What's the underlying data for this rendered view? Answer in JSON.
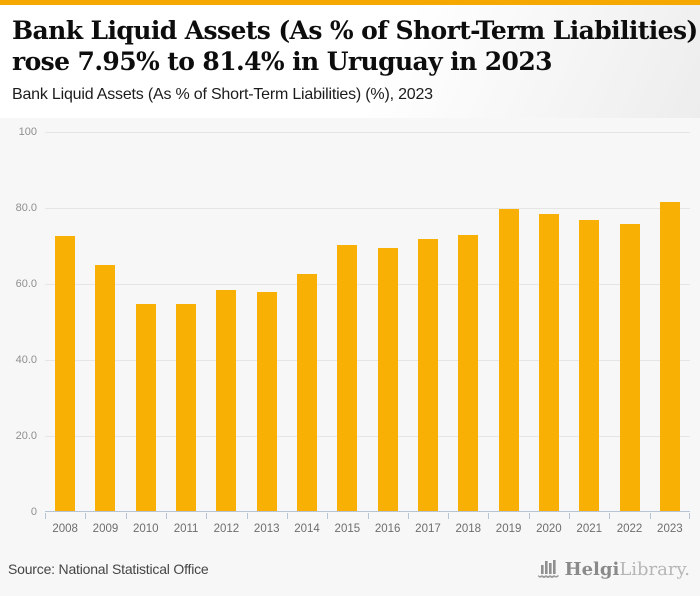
{
  "colors": {
    "accent_bar": "#f5a900",
    "bar_fill": "#f9b004",
    "gridline": "#e5e5e5",
    "axis_line": "#b7c4d6",
    "background": "#f7f7f7"
  },
  "header": {
    "title_line1": "Bank Liquid Assets (As % of Short-Term Liabilities)",
    "title_line2": "rose 7.95% to 81.4% in Uruguay in 2023",
    "subtitle": "Bank Liquid Assets (As % of Short-Term Liabilities) (%), 2023"
  },
  "chart_data": {
    "type": "bar",
    "title": "Bank Liquid Assets (As % of Short-Term Liabilities) (%), 2023",
    "categories": [
      "2008",
      "2009",
      "2010",
      "2011",
      "2012",
      "2013",
      "2014",
      "2015",
      "2016",
      "2017",
      "2018",
      "2019",
      "2020",
      "2021",
      "2022",
      "2023"
    ],
    "values": [
      72.3,
      64.8,
      54.5,
      54.5,
      58.2,
      57.7,
      62.5,
      69.9,
      69.2,
      71.7,
      72.7,
      79.4,
      78.1,
      76.7,
      75.4,
      81.4
    ],
    "xlabel": "",
    "ylabel": "",
    "ylim": [
      0,
      100
    ],
    "ytick_labels": [
      "100",
      "80.0",
      "60.0",
      "40.0",
      "20.0",
      "0"
    ],
    "grid": true,
    "legend": false
  },
  "footer": {
    "source": "Source: National Statistical Office",
    "brand_bold": "Helgi",
    "brand_light": "Library."
  }
}
